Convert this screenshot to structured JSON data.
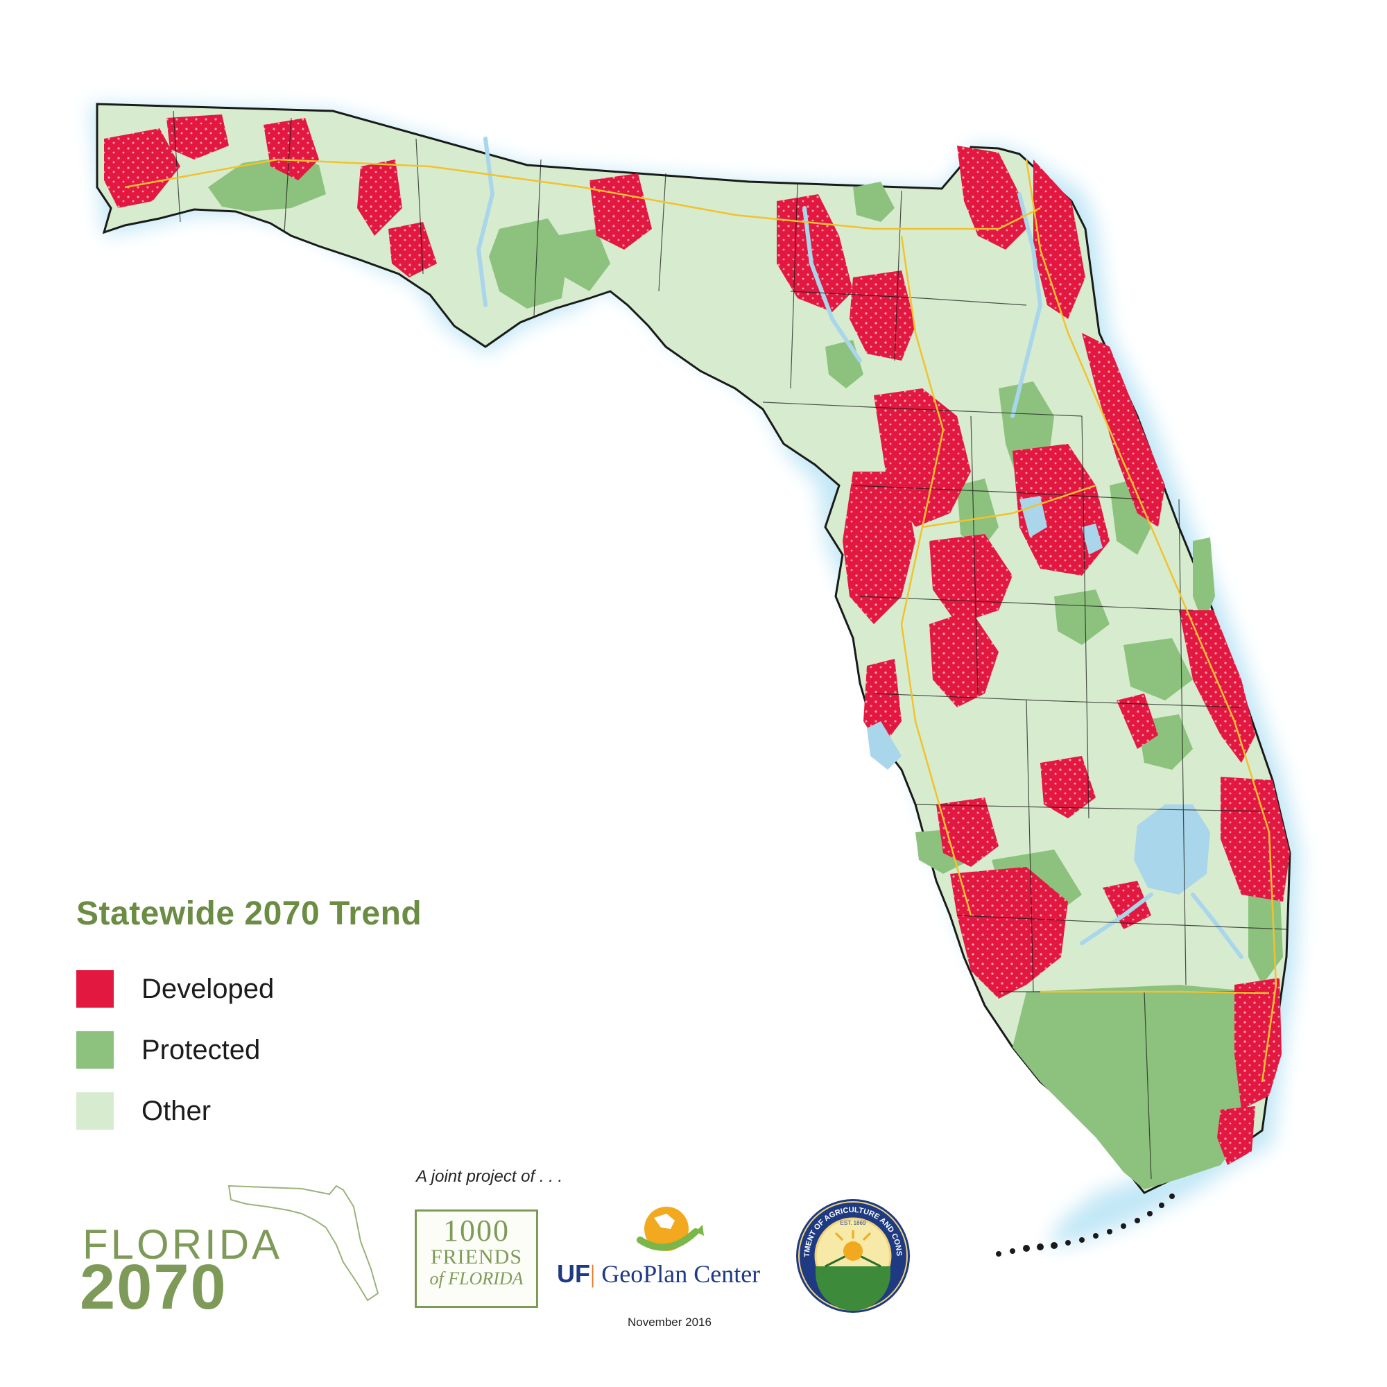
{
  "legend": {
    "title": "Statewide 2070 Trend",
    "items": [
      {
        "label": "Developed",
        "color": "#e31841"
      },
      {
        "label": "Protected",
        "color": "#8cc27d"
      },
      {
        "label": "Other",
        "color": "#d7ecce"
      }
    ]
  },
  "credits": {
    "joint_project": "A joint project of . . .",
    "logo_florida_word": "FLORIDA",
    "logo_florida_year": "2070",
    "logo_1000_line1": "1000",
    "logo_1000_line2": "FRIENDS",
    "logo_1000_line3": "of FLORIDA",
    "uf_mark": "UF",
    "uf_center": "GeoPlan Center",
    "seal_text": "FLORIDA DEPARTMENT OF AGRICULTURE AND CONSUMER SERVICES",
    "seal_est": "EST. 1869",
    "date": "November 2016"
  },
  "colors": {
    "water": "#a9d6ea",
    "glow": "#bfe6f6",
    "roads": "#f2c12e",
    "boundary": "#1a1a1a",
    "accent": "#6a8c43"
  }
}
